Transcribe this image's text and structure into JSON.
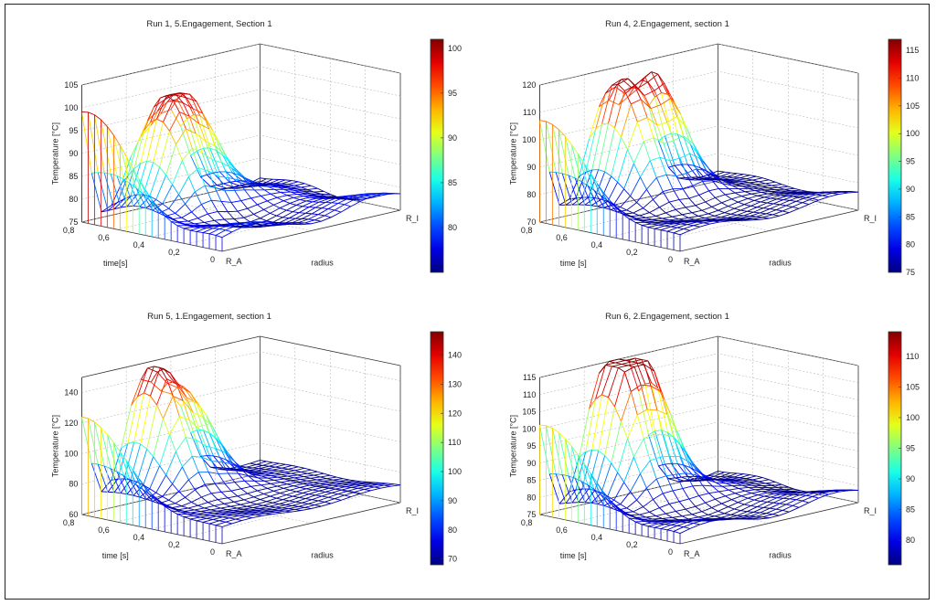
{
  "figure": {
    "panel_count": 4
  },
  "chart_data": [
    {
      "type": "surface",
      "title": "Run 1, 5.Engagement, Section 1",
      "zlabel": "Temperature [°C]",
      "ylabel": "time[s]",
      "xlabel": "radius",
      "x_ticks": [
        "R_A",
        "R_I"
      ],
      "y_ticks": [
        "0",
        "0,2",
        "0,4",
        "0,6",
        "0,8"
      ],
      "z_ticks": [
        "75",
        "80",
        "85",
        "90",
        "95",
        "100",
        "105"
      ],
      "zlim": [
        75,
        105
      ],
      "colorbar": {
        "ticks": [
          "80",
          "85",
          "90",
          "95",
          "100"
        ],
        "range": [
          75,
          101
        ]
      },
      "grid": true,
      "colormap": "jet",
      "edge_peak": 100,
      "peaks": [
        {
          "temp": 99,
          "radius": 0.32,
          "time": 0.65
        },
        {
          "temp": 96,
          "radius": 0.5,
          "time": 0.72
        }
      ],
      "min_temp": 77
    },
    {
      "type": "surface",
      "title": "Run 4, 2.Engagement, section 1",
      "zlabel": "Temperature [°C]",
      "ylabel": "time [s]",
      "xlabel": "radius",
      "x_ticks": [
        "R_A",
        "R_I"
      ],
      "y_ticks": [
        "0",
        "0,2",
        "0,4",
        "0,6",
        "0,8"
      ],
      "z_ticks": [
        "70",
        "80",
        "90",
        "100",
        "110",
        "120"
      ],
      "zlim": [
        70,
        120
      ],
      "colorbar": {
        "ticks": [
          "75",
          "80",
          "85",
          "90",
          "95",
          "100",
          "105",
          "110",
          "115"
        ],
        "range": [
          75,
          117
        ]
      },
      "grid": true,
      "colormap": "jet",
      "edge_peak": 108,
      "peaks": [
        {
          "temp": 117,
          "radius": 0.35,
          "time": 0.7
        },
        {
          "temp": 114,
          "radius": 0.56,
          "time": 0.72
        }
      ],
      "min_temp": 75
    },
    {
      "type": "surface",
      "title": "Run 5, 1.Engagement, section 1",
      "zlabel": "Temperature [°C]",
      "ylabel": "time [s]",
      "xlabel": "radius",
      "x_ticks": [
        "R_A",
        "R_I"
      ],
      "y_ticks": [
        "0",
        "0,2",
        "0,4",
        "0,6",
        "0,8"
      ],
      "z_ticks": [
        "60",
        "80",
        "100",
        "120",
        "140"
      ],
      "zlim": [
        60,
        150
      ],
      "colorbar": {
        "ticks": [
          "70",
          "80",
          "90",
          "100",
          "110",
          "120",
          "130",
          "140"
        ],
        "range": [
          68,
          148
        ]
      },
      "grid": true,
      "colormap": "jet",
      "edge_peak": 125,
      "peaks": [
        {
          "temp": 148,
          "radius": 0.33,
          "time": 0.72
        },
        {
          "temp": 122,
          "radius": 0.52,
          "time": 0.74
        }
      ],
      "min_temp": 70
    },
    {
      "type": "surface",
      "title": "Run 6, 2.Engagement, section 1",
      "zlabel": "Temperature [°C]",
      "ylabel": "time [s]",
      "xlabel": "radius",
      "x_ticks": [
        "R_A",
        "R_I"
      ],
      "y_ticks": [
        "0",
        "0,2",
        "0,4",
        "0,6",
        "0,8"
      ],
      "z_ticks": [
        "75",
        "80",
        "85",
        "90",
        "95",
        "100",
        "105",
        "110",
        "115"
      ],
      "zlim": [
        75,
        115
      ],
      "colorbar": {
        "ticks": [
          "80",
          "85",
          "90",
          "95",
          "100",
          "105",
          "110"
        ],
        "range": [
          76,
          114
        ]
      },
      "grid": true,
      "colormap": "jet",
      "edge_peak": 102,
      "peaks": [
        {
          "temp": 114,
          "radius": 0.33,
          "time": 0.72
        },
        {
          "temp": 112,
          "radius": 0.5,
          "time": 0.74
        }
      ],
      "min_temp": 77
    }
  ]
}
